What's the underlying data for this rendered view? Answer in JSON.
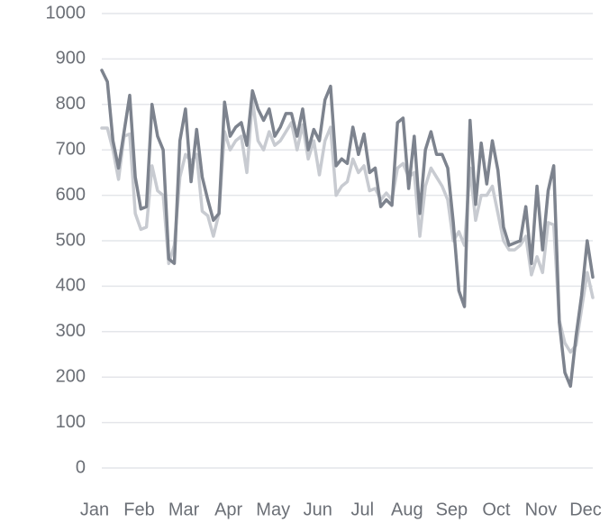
{
  "chart_data": {
    "type": "line",
    "categories": [
      "Jan",
      null,
      null,
      null,
      null,
      null,
      null,
      null,
      "Feb",
      null,
      null,
      null,
      null,
      null,
      null,
      null,
      "Mar",
      null,
      null,
      null,
      null,
      null,
      null,
      null,
      "Apr",
      null,
      null,
      null,
      null,
      null,
      null,
      null,
      "May",
      null,
      null,
      null,
      null,
      null,
      null,
      null,
      "Jun",
      null,
      null,
      null,
      null,
      null,
      null,
      null,
      "Jul",
      null,
      null,
      null,
      null,
      null,
      null,
      null,
      "Aug",
      null,
      null,
      null,
      null,
      null,
      null,
      null,
      "Sep",
      null,
      null,
      null,
      null,
      null,
      null,
      null,
      "Oct",
      null,
      null,
      null,
      null,
      null,
      null,
      null,
      "Nov",
      null,
      null,
      null,
      null,
      null,
      null,
      null,
      "Dec"
    ],
    "series": [
      {
        "color": "#c8cbd1",
        "values": [
          748,
          748,
          700,
          635,
          730,
          735,
          560,
          525,
          530,
          665,
          610,
          600,
          450,
          490,
          640,
          690,
          675,
          690,
          565,
          555,
          510,
          560,
          740,
          700,
          720,
          730,
          650,
          810,
          720,
          700,
          740,
          710,
          720,
          740,
          760,
          700,
          755,
          680,
          720,
          645,
          720,
          750,
          600,
          620,
          630,
          680,
          650,
          665,
          610,
          615,
          590,
          605,
          590,
          660,
          670,
          640,
          650,
          510,
          620,
          660,
          640,
          620,
          590,
          500,
          520,
          490,
          660,
          545,
          600,
          600,
          620,
          560,
          500,
          480,
          480,
          490,
          510,
          425,
          465,
          430,
          540,
          535,
          325,
          275,
          255,
          270,
          350,
          430,
          375
        ]
      },
      {
        "color": "#7d838e",
        "values": [
          875,
          850,
          720,
          660,
          740,
          820,
          640,
          570,
          575,
          800,
          730,
          700,
          460,
          450,
          720,
          790,
          630,
          745,
          640,
          590,
          545,
          560,
          805,
          730,
          750,
          760,
          710,
          830,
          790,
          765,
          790,
          730,
          750,
          780,
          780,
          730,
          790,
          700,
          745,
          720,
          810,
          840,
          665,
          680,
          670,
          750,
          690,
          735,
          650,
          660,
          575,
          590,
          578,
          760,
          770,
          615,
          730,
          560,
          700,
          740,
          690,
          690,
          660,
          540,
          390,
          355,
          765,
          580,
          715,
          625,
          720,
          655,
          530,
          490,
          495,
          500,
          575,
          450,
          620,
          480,
          610,
          665,
          320,
          210,
          180,
          290,
          380,
          500,
          420
        ]
      }
    ],
    "ylim": [
      0,
      1000
    ],
    "yticks": [
      0,
      100,
      200,
      300,
      400,
      500,
      600,
      700,
      800,
      900,
      1000
    ],
    "grid": true
  }
}
